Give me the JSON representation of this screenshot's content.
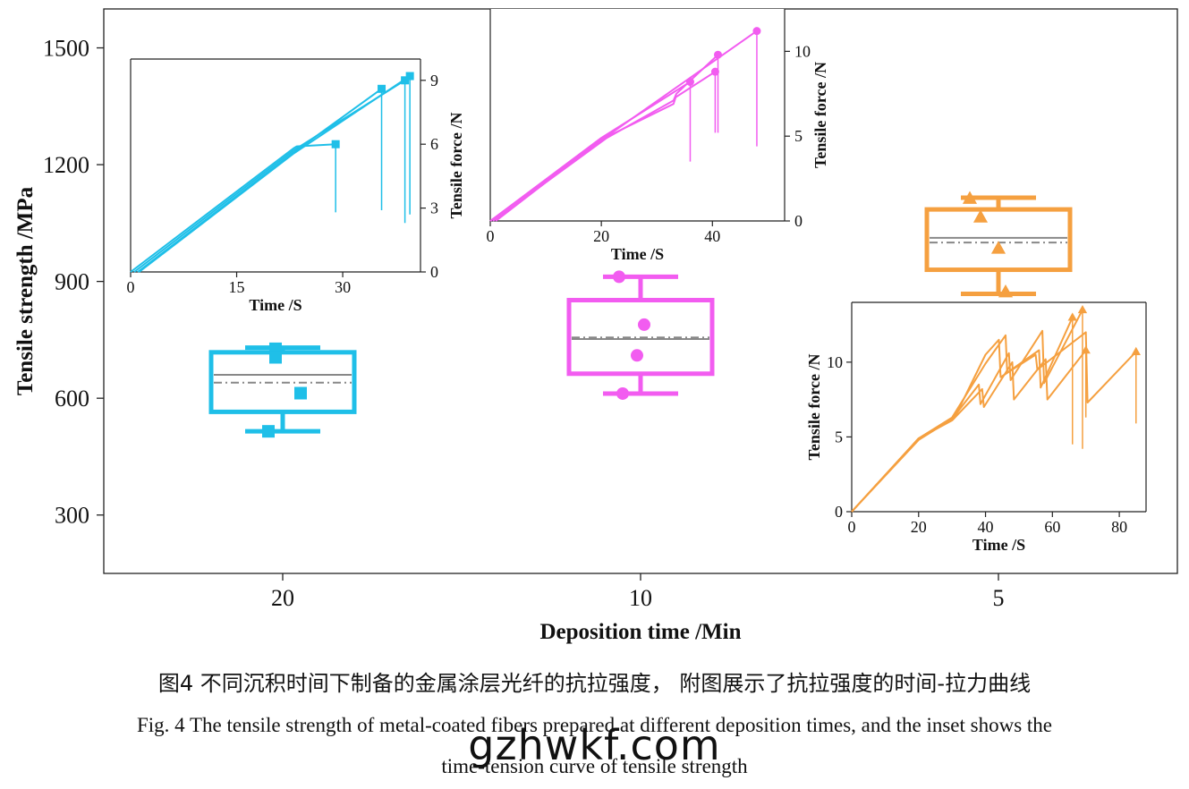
{
  "chart_data": [
    {
      "type": "box",
      "id": "main",
      "xlabel": "Deposition time /Min",
      "ylabel": "Tensile strength /MPa",
      "ylim": [
        150,
        1600
      ],
      "yticks": [
        300,
        600,
        900,
        1200,
        1500
      ],
      "categories": [
        "20",
        "10",
        "5"
      ],
      "colors": [
        "#1fbfe8",
        "#f25cf0",
        "#f5a040"
      ],
      "mean_color": "#888888",
      "groups": [
        {
          "category": "20",
          "whisker_low": 515,
          "q1": 565,
          "median": 660,
          "mean": 640,
          "q3": 718,
          "whisker_high": 730,
          "points": [
            [
              -0.02,
              727
            ],
            [
              -0.02,
              705
            ],
            [
              0.05,
              613
            ],
            [
              -0.04,
              515
            ]
          ],
          "marker": "square"
        },
        {
          "category": "10",
          "whisker_low": 612,
          "q1": 663,
          "median": 752,
          "mean": 756,
          "q3": 852,
          "whisker_high": 912,
          "points": [
            [
              -0.06,
              912
            ],
            [
              0.01,
              789
            ],
            [
              -0.01,
              710
            ],
            [
              -0.05,
              612
            ]
          ],
          "marker": "circle"
        },
        {
          "category": "5",
          "whisker_low": 868,
          "q1": 930,
          "median": 1012,
          "mean": 1000,
          "q3": 1085,
          "whisker_high": 1115,
          "points": [
            [
              -0.08,
              1113
            ],
            [
              -0.05,
              1065
            ],
            [
              0.0,
              985
            ],
            [
              0.02,
              873
            ]
          ],
          "marker": "triangle"
        }
      ]
    },
    {
      "type": "line",
      "id": "inset20",
      "xlabel": "Time /S",
      "ylabel": "Tensile force /N",
      "xlim": [
        0,
        41
      ],
      "ylim": [
        0,
        10
      ],
      "xticks": [
        0,
        15,
        30
      ],
      "yticks": [
        0,
        3,
        6,
        9
      ],
      "marker": "square",
      "color": "#1fbfe8",
      "series": [
        {
          "name": "s1",
          "x": [
            0,
            23,
            23.5,
            29
          ],
          "y": [
            0,
            5.8,
            5.9,
            6.0
          ],
          "drop": 2.8
        },
        {
          "name": "s2",
          "x": [
            1,
            23,
            35.5
          ],
          "y": [
            0,
            5.6,
            8.6
          ],
          "drop": 2.9
        },
        {
          "name": "s3",
          "x": [
            0.5,
            23,
            38.8
          ],
          "y": [
            0,
            5.7,
            9.0
          ],
          "drop": 2.3
        },
        {
          "name": "s4",
          "x": [
            1.2,
            23,
            39.5
          ],
          "y": [
            0,
            5.55,
            9.2
          ],
          "drop": 2.7
        }
      ]
    },
    {
      "type": "line",
      "id": "inset10",
      "xlabel": "Time /S",
      "ylabel": "Tensile force /N",
      "xlim": [
        0,
        53
      ],
      "ylim": [
        0,
        12.5
      ],
      "xticks": [
        0,
        20,
        40
      ],
      "yticks": [
        0,
        5,
        10
      ],
      "marker": "circle",
      "color": "#f25cf0",
      "series": [
        {
          "name": "s1",
          "x": [
            0,
            20,
            36
          ],
          "y": [
            0,
            4.9,
            8.2
          ],
          "drop": 3.5
        },
        {
          "name": "s2",
          "x": [
            1,
            20,
            33,
            33.4,
            40.5
          ],
          "y": [
            0,
            4.8,
            6.9,
            7.3,
            8.8
          ],
          "drop": 5.2
        },
        {
          "name": "s3",
          "x": [
            0.5,
            21,
            33,
            33.5,
            41
          ],
          "y": [
            0,
            4.9,
            7.1,
            7.5,
            9.8
          ],
          "drop": 5.2
        },
        {
          "name": "s4",
          "x": [
            0,
            21,
            48
          ],
          "y": [
            0,
            5.0,
            11.2
          ],
          "drop": 4.4
        }
      ]
    },
    {
      "type": "line",
      "id": "inset5",
      "xlabel": "Time /S",
      "ylabel": "Tensile force /N",
      "xlim": [
        0,
        88
      ],
      "ylim": [
        0,
        14
      ],
      "xticks": [
        0,
        20,
        40,
        60,
        80
      ],
      "yticks": [
        0,
        5,
        10
      ],
      "marker": "triangle",
      "color": "#f5a040",
      "series": [
        {
          "name": "s1",
          "x": [
            0,
            20,
            30,
            40,
            46,
            46.5,
            56,
            56.5,
            66
          ],
          "y": [
            0,
            4.9,
            6.3,
            9.9,
            11.8,
            9.3,
            10.8,
            8.3,
            13.0
          ],
          "drop": 4.5
        },
        {
          "name": "s2",
          "x": [
            0,
            20,
            30,
            38,
            38.5,
            47,
            47.5,
            57,
            57.5,
            69
          ],
          "y": [
            0,
            4.8,
            6.2,
            8.5,
            7.2,
            10.6,
            8.8,
            12.1,
            8.6,
            13.5
          ],
          "drop": 4.2
        },
        {
          "name": "s3",
          "x": [
            0,
            20,
            30,
            39,
            39.5,
            48,
            48.5,
            58,
            58.5,
            70
          ],
          "y": [
            0,
            4.9,
            6.1,
            8.2,
            7.0,
            10.0,
            7.5,
            10.2,
            7.5,
            10.8
          ],
          "drop": 6.3
        },
        {
          "name": "s4",
          "x": [
            0,
            20,
            31,
            40,
            44,
            44.5,
            55,
            55.5,
            70,
            70.5,
            85
          ],
          "y": [
            0,
            4.9,
            6.4,
            10.5,
            11.5,
            9.0,
            10.5,
            9.5,
            12.0,
            7.3,
            10.7
          ],
          "drop": 5.9
        }
      ]
    }
  ],
  "captions": {
    "cn": "图4  不同沉积时间下制备的金属涂层光纤的抗拉强度， 附图展示了抗拉强度的时间-拉力曲线",
    "en_line1": "Fig. 4 The tensile strength of metal-coated fibers prepared at different deposition times, and the inset shows the",
    "en_line2": "time-tension curve of tensile strength"
  },
  "watermark": "gzhwkf.com"
}
